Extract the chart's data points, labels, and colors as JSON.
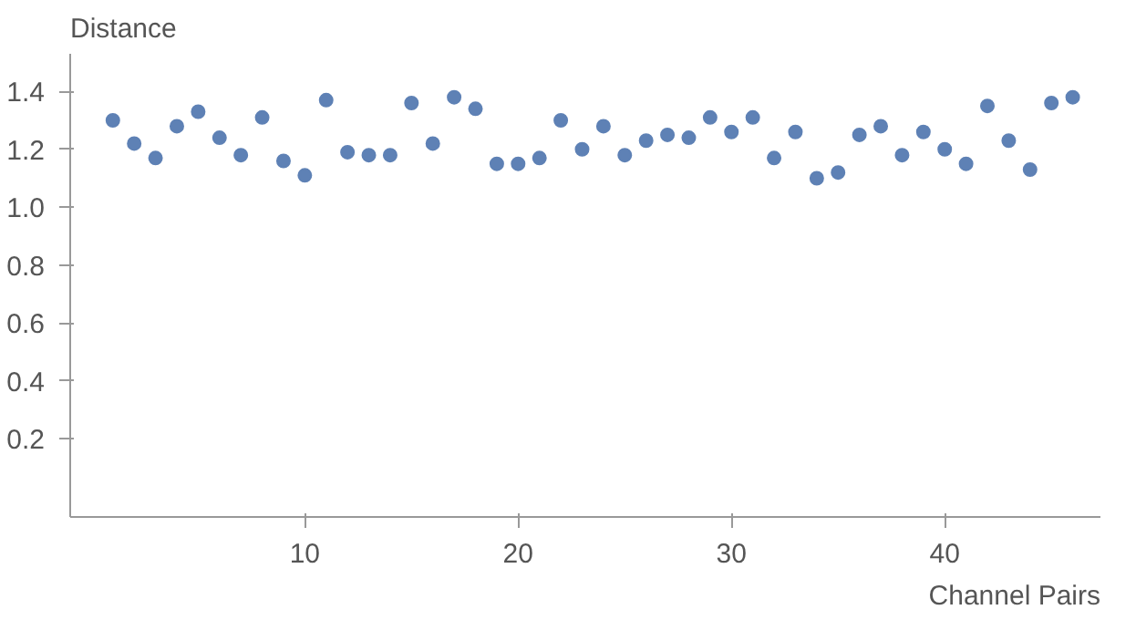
{
  "chart_data": {
    "type": "scatter",
    "ylabel": "Distance",
    "xlabel": "Channel Pairs",
    "x": [
      1,
      2,
      3,
      4,
      5,
      6,
      7,
      8,
      9,
      10,
      11,
      12,
      13,
      14,
      15,
      16,
      17,
      18,
      19,
      20,
      21,
      22,
      23,
      24,
      25,
      26,
      27,
      28,
      29,
      30,
      31,
      32,
      33,
      34,
      35,
      36,
      37,
      38,
      39,
      40,
      41,
      42,
      43,
      44,
      45,
      46
    ],
    "series": [
      {
        "color": "#5e81b5",
        "values": [
          1.3,
          1.22,
          1.17,
          1.28,
          1.33,
          1.24,
          1.18,
          1.31,
          1.16,
          1.11,
          1.37,
          1.19,
          1.18,
          1.18,
          1.36,
          1.22,
          1.38,
          1.34,
          1.15,
          1.15,
          1.17,
          1.3,
          1.2,
          1.28,
          1.18,
          1.23,
          1.25,
          1.24,
          1.31,
          1.26,
          1.31,
          1.17,
          1.26,
          1.1,
          1.12,
          1.25,
          1.28,
          1.18,
          1.26,
          1.2,
          1.15,
          1.35,
          1.23,
          1.13,
          1.36,
          1.38
        ]
      }
    ],
    "xlim": [
      -1,
      47.3
    ],
    "ylim": [
      -0.07,
      1.53
    ],
    "xticks": [
      10,
      20,
      30,
      40
    ],
    "yticks": [
      0.2,
      0.4,
      0.6,
      0.8,
      {
        "value": 1.0,
        "label": "1.0"
      },
      1.2,
      1.4
    ],
    "marker": "circle",
    "grid": false
  }
}
